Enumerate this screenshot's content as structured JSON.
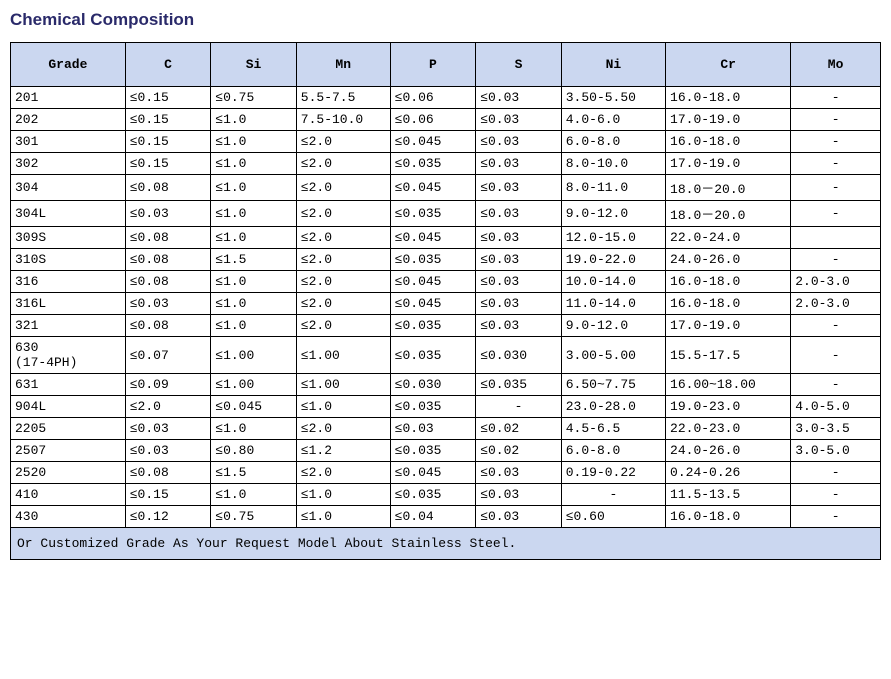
{
  "title": "Chemical Composition",
  "columns": [
    "Grade",
    "C",
    "Si",
    "Mn",
    "P",
    "S",
    "Ni",
    "Cr",
    "Mo"
  ],
  "column_classes": [
    "col-grade",
    "col-c",
    "col-si",
    "col-mn",
    "col-p",
    "col-s",
    "col-ni",
    "col-cr",
    "col-mo"
  ],
  "colors": {
    "title": "#2a2a6a",
    "header_bg": "#cbd7f0",
    "border": "#000000",
    "page_bg": "#ffffff"
  },
  "rows": [
    {
      "grade": "201",
      "c": "≤0.15",
      "si": "≤0.75",
      "mn": "5.5-7.5",
      "p": "≤0.06",
      "s": "≤0.03",
      "ni": "3.50-5.50",
      "cr": "16.0-18.0",
      "mo": "-"
    },
    {
      "grade": "202",
      "c": "≤0.15",
      "si": "≤1.0",
      "mn": "7.5-10.0",
      "p": "≤0.06",
      "s": "≤0.03",
      "ni": "4.0-6.0",
      "cr": "17.0-19.0",
      "mo": "-"
    },
    {
      "grade": "301",
      "c": "≤0.15",
      "si": "≤1.0",
      "mn": "≤2.0",
      "p": "≤0.045",
      "s": "≤0.03",
      "ni": "6.0-8.0",
      "cr": "16.0-18.0",
      "mo": "-"
    },
    {
      "grade": "302",
      "c": "≤0.15",
      "si": "≤1.0",
      "mn": "≤2.0",
      "p": "≤0.035",
      "s": "≤0.03",
      "ni": "8.0-10.0",
      "cr": "17.0-19.0",
      "mo": "-"
    },
    {
      "grade": "304",
      "c": "≤0.08",
      "si": "≤1.0",
      "mn": "≤2.0",
      "p": "≤0.045",
      "s": "≤0.03",
      "ni": "8.0-11.0",
      "cr": "18.0－20.0",
      "mo": "-"
    },
    {
      "grade": "304L",
      "c": "≤0.03",
      "si": "≤1.0",
      "mn": "≤2.0",
      "p": "≤0.035",
      "s": "≤0.03",
      "ni": "9.0-12.0",
      "cr": "18.0－20.0",
      "mo": "-"
    },
    {
      "grade": "309S",
      "c": "≤0.08",
      "si": "≤1.0",
      "mn": "≤2.0",
      "p": "≤0.045",
      "s": "≤0.03",
      "ni": "12.0-15.0",
      "cr": "22.0-24.0",
      "mo": ""
    },
    {
      "grade": "310S",
      "c": "≤0.08",
      "si": "≤1.5",
      "mn": "≤2.0",
      "p": "≤0.035",
      "s": "≤0.03",
      "ni": "19.0-22.0",
      "cr": "24.0-26.0",
      "mo": "-"
    },
    {
      "grade": "316",
      "c": "≤0.08",
      "si": "≤1.0",
      "mn": "≤2.0",
      "p": "≤0.045",
      "s": "≤0.03",
      "ni": "10.0-14.0",
      "cr": "16.0-18.0",
      "mo": "2.0-3.0"
    },
    {
      "grade": "316L",
      "c": "≤0.03",
      "si": "≤1.0",
      "mn": "≤2.0",
      "p": "≤0.045",
      "s": "≤0.03",
      "ni": "11.0-14.0",
      "cr": "16.0-18.0",
      "mo": "2.0-3.0"
    },
    {
      "grade": "321",
      "c": "≤0.08",
      "si": "≤1.0",
      "mn": "≤2.0",
      "p": "≤0.035",
      "s": "≤0.03",
      "ni": "9.0-12.0",
      "cr": "17.0-19.0",
      "mo": "-"
    },
    {
      "grade": "630\n(17-4PH)",
      "c": "≤0.07",
      "si": "≤1.00",
      "mn": "≤1.00",
      "p": "≤0.035",
      "s": "≤0.030",
      "ni": "3.00-5.00",
      "cr": "15.5-17.5",
      "mo": "-"
    },
    {
      "grade": "631",
      "c": "≤0.09",
      "si": "≤1.00",
      "mn": "≤1.00",
      "p": "≤0.030",
      "s": "≤0.035",
      "ni": "6.50~7.75",
      "cr": "16.00~18.00",
      "mo": "-"
    },
    {
      "grade": "904L",
      "c": "≤2.0",
      "si": "≤0.045",
      "mn": "≤1.0",
      "p": "≤0.035",
      "s": "-",
      "ni": "23.0-28.0",
      "cr": "19.0-23.0",
      "mo": "4.0-5.0"
    },
    {
      "grade": "2205",
      "c": "≤0.03",
      "si": "≤1.0",
      "mn": "≤2.0",
      "p": "≤0.03",
      "s": "≤0.02",
      "ni": "4.5-6.5",
      "cr": "22.0-23.0",
      "mo": "3.0-3.5"
    },
    {
      "grade": "2507",
      "c": "≤0.03",
      "si": "≤0.80",
      "mn": "≤1.2",
      "p": "≤0.035",
      "s": "≤0.02",
      "ni": "6.0-8.0",
      "cr": "24.0-26.0",
      "mo": "3.0-5.0"
    },
    {
      "grade": "2520",
      "c": "≤0.08",
      "si": "≤1.5",
      "mn": "≤2.0",
      "p": "≤0.045",
      "s": "≤0.03",
      "ni": "0.19-0.22",
      "cr": "0.24-0.26",
      "mo": "-"
    },
    {
      "grade": "410",
      "c": "≤0.15",
      "si": "≤1.0",
      "mn": "≤1.0",
      "p": "≤0.035",
      "s": "≤0.03",
      "ni": "-",
      "cr": "11.5-13.5",
      "mo": "-"
    },
    {
      "grade": "430",
      "c": "≤0.12",
      "si": "≤0.75",
      "mn": "≤1.0",
      "p": "≤0.04",
      "s": "≤0.03",
      "ni": "≤0.60",
      "cr": "16.0-18.0",
      "mo": "-"
    }
  ],
  "footer": "Or Customized Grade As Your Request Model About Stainless Steel."
}
